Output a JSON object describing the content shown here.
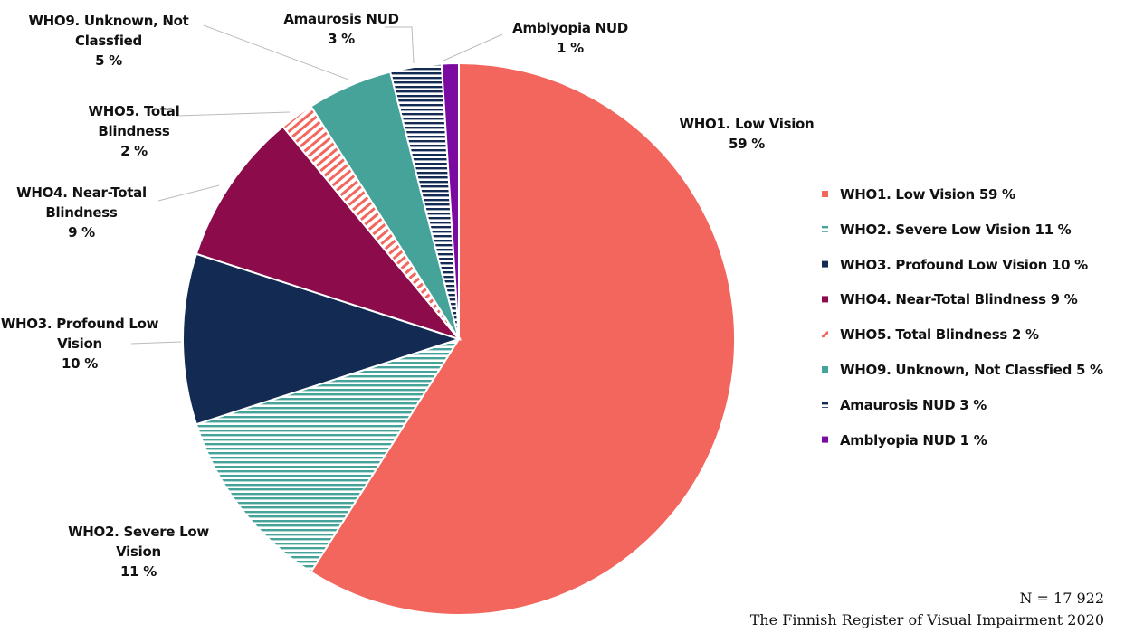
{
  "chart_data": {
    "type": "pie",
    "categories": [
      "WHO1. Low Vision",
      "WHO2. Severe Low Vision",
      "WHO3. Profound Low Vision",
      "WHO4. Near-Total Blindness",
      "WHO5. Total Blindness",
      "WHO9. Unknown, Not Classfied",
      "Amaurosis NUD",
      "Amblyopia NUD"
    ],
    "values": [
      59,
      11,
      10,
      9,
      2,
      5,
      3,
      1
    ],
    "value_labels": [
      "59 %",
      "11 %",
      "10 %",
      "9 %",
      "2 %",
      "5 %",
      "3 %",
      "1 %"
    ],
    "colors": [
      "#f2665d",
      "#46a39a",
      "#132a52",
      "#8b0b4b",
      "#f2665d",
      "#46a39a",
      "#132a52",
      "#7a0aa0"
    ],
    "hatch": [
      "none",
      "horizontal",
      "none",
      "none",
      "diagonal",
      "none",
      "horizontal",
      "none"
    ],
    "legend": "right",
    "notes": [
      "N = 17 922",
      "The Finnish Register of Visual Impairment 2020"
    ]
  }
}
